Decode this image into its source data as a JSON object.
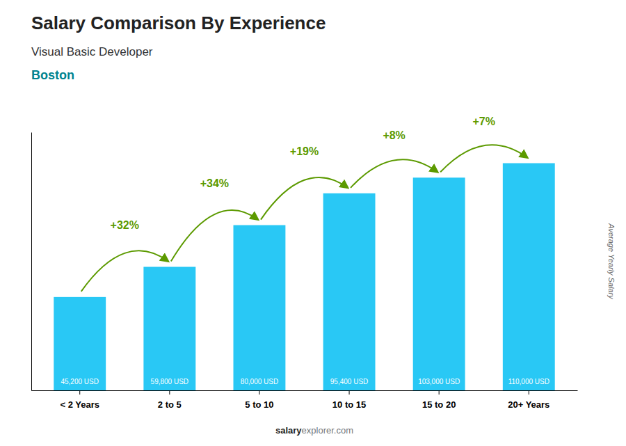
{
  "chart_data": {
    "type": "bar",
    "title": "Salary Comparison By Experience",
    "subtitle": "Visual Basic Developer",
    "city": "Boston",
    "ylabel": "Average Yearly Salary",
    "footer": [
      "salary",
      "explorer.com"
    ],
    "categories": [
      "< 2 Years",
      "2 to 5",
      "5 to 10",
      "10 to 15",
      "15 to 20",
      "20+ Years"
    ],
    "values": [
      45200,
      59800,
      80000,
      95400,
      103000,
      110000
    ],
    "value_labels": [
      "45,200 USD",
      "59,800 USD",
      "80,000 USD",
      "95,400 USD",
      "103,000 USD",
      "110,000 USD"
    ],
    "data_labels": true,
    "annotations": [
      "+32%",
      "+34%",
      "+19%",
      "+8%",
      "+7%"
    ],
    "color": "#29c8f5",
    "ylim": [
      0,
      125000
    ],
    "tick_labels": "x"
  }
}
